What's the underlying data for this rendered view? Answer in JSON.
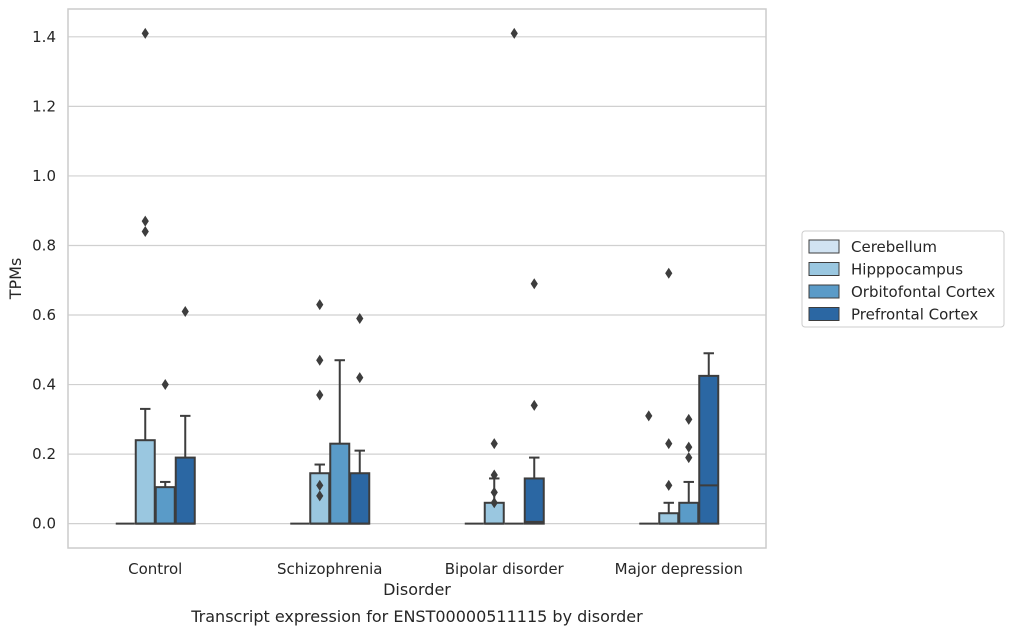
{
  "chart_data": {
    "type": "box",
    "caption": "Transcript expression for ENST00000511115 by disorder",
    "xlabel": "Disorder",
    "ylabel": "TPMs",
    "ylim": [
      -0.07,
      1.48
    ],
    "yticks": [
      0.0,
      0.2,
      0.4,
      0.6,
      0.8,
      1.0,
      1.2,
      1.4
    ],
    "ytick_labels": [
      "0.0",
      "0.2",
      "0.4",
      "0.6",
      "0.8",
      "1.0",
      "1.2",
      "1.4"
    ],
    "grid": true,
    "legend_position": "right",
    "categories": [
      "Control",
      "Schizophrenia",
      "Bipolar disorder",
      "Major depression"
    ],
    "series": [
      {
        "name": "Cerebellum",
        "color": "#d1e3f2",
        "boxes": [
          {
            "q1": 0,
            "median": 0,
            "q3": 0,
            "whislo": 0,
            "whishi": 0,
            "fliers": []
          },
          {
            "q1": 0,
            "median": 0,
            "q3": 0,
            "whislo": 0,
            "whishi": 0,
            "fliers": []
          },
          {
            "q1": 0,
            "median": 0,
            "q3": 0,
            "whislo": 0,
            "whishi": 0,
            "fliers": []
          },
          {
            "q1": 0,
            "median": 0,
            "q3": 0,
            "whislo": 0,
            "whishi": 0,
            "fliers": [
              0.31
            ]
          }
        ]
      },
      {
        "name": "Hipppocampus",
        "color": "#9ac7e0",
        "boxes": [
          {
            "q1": 0,
            "median": 0,
            "q3": 0.24,
            "whislo": 0,
            "whishi": 0.33,
            "fliers": [
              0.84,
              0.87,
              1.41
            ]
          },
          {
            "q1": 0,
            "median": 0,
            "q3": 0.145,
            "whislo": 0,
            "whishi": 0.17,
            "fliers": [
              0.08,
              0.11,
              0.37,
              0.47,
              0.63
            ]
          },
          {
            "q1": 0,
            "median": 0,
            "q3": 0.06,
            "whislo": 0,
            "whishi": 0.13,
            "fliers": [
              0.06,
              0.09,
              0.14,
              0.23
            ]
          },
          {
            "q1": 0,
            "median": 0,
            "q3": 0.03,
            "whislo": 0,
            "whishi": 0.06,
            "fliers": [
              0.11,
              0.23,
              0.72
            ]
          }
        ]
      },
      {
        "name": "Orbitofontal Cortex",
        "color": "#5a9bc8",
        "boxes": [
          {
            "q1": 0,
            "median": 0,
            "q3": 0.105,
            "whislo": 0,
            "whishi": 0.12,
            "fliers": [
              0.4
            ]
          },
          {
            "q1": 0,
            "median": 0,
            "q3": 0.23,
            "whislo": 0,
            "whishi": 0.47,
            "fliers": []
          },
          {
            "q1": 0,
            "median": 0,
            "q3": 0,
            "whislo": 0,
            "whishi": 0,
            "fliers": [
              1.41
            ]
          },
          {
            "q1": 0,
            "median": 0,
            "q3": 0.06,
            "whislo": 0,
            "whishi": 0.12,
            "fliers": [
              0.19,
              0.22,
              0.3
            ]
          }
        ]
      },
      {
        "name": "Prefrontal Cortex",
        "color": "#2b67a3",
        "boxes": [
          {
            "q1": 0,
            "median": 0,
            "q3": 0.19,
            "whislo": 0,
            "whishi": 0.31,
            "fliers": [
              0.61
            ]
          },
          {
            "q1": 0,
            "median": 0,
            "q3": 0.145,
            "whislo": 0,
            "whishi": 0.21,
            "fliers": [
              0.42,
              0.59
            ]
          },
          {
            "q1": 0,
            "median": 0.005,
            "q3": 0.13,
            "whislo": 0,
            "whishi": 0.19,
            "fliers": [
              0.34,
              0.69
            ]
          },
          {
            "q1": 0,
            "median": 0.11,
            "q3": 0.425,
            "whislo": 0,
            "whishi": 0.49,
            "fliers": []
          }
        ]
      }
    ]
  }
}
